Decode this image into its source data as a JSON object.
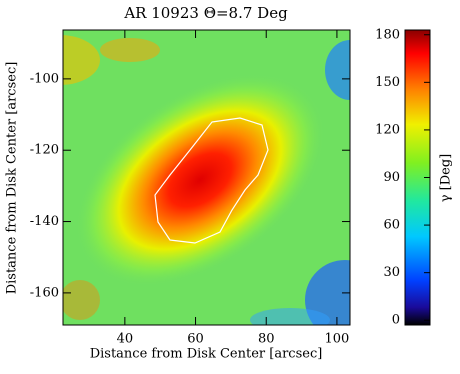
{
  "chart_data": {
    "type": "image",
    "title": "AR 10923 Θ=8.7 Deg",
    "xlabel": "Distance from Disk Center [arcsec]",
    "ylabel": "Distance from Disk Center [arcsec]",
    "xlim": [
      22.5,
      103.7
    ],
    "xticks": [
      40,
      60,
      80,
      100
    ],
    "ylim": [
      -169,
      -86.3
    ],
    "yticks": [
      -160,
      -140,
      -120,
      -100
    ],
    "colorbar": {
      "label": "γ [Deg]",
      "clim": [
        -3,
        183
      ],
      "ticks": [
        0,
        30,
        60,
        90,
        120,
        150,
        180
      ]
    }
  }
}
